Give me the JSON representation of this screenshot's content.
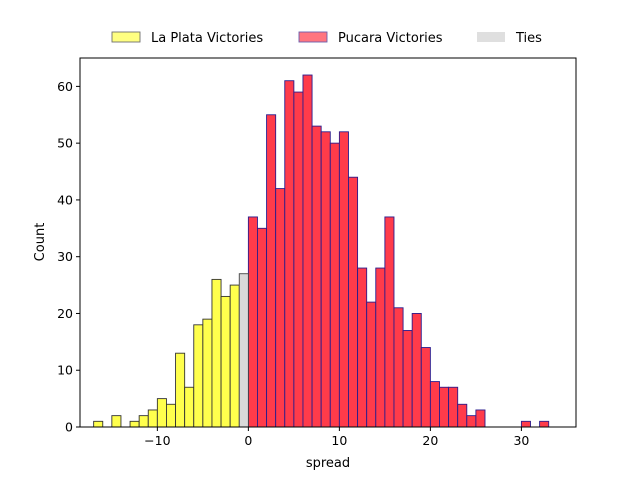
{
  "chart_data": {
    "type": "bar",
    "title": "",
    "xlabel": "spread",
    "ylabel": "Count",
    "xlim": [
      -18.5,
      36
    ],
    "ylim": [
      0,
      65
    ],
    "xticks": [
      -10,
      0,
      10,
      20,
      30
    ],
    "yticks": [
      0,
      10,
      20,
      30,
      40,
      50,
      60
    ],
    "grid": false,
    "legend_placement": "top-center",
    "bin_width": 1,
    "series": [
      {
        "name": "La Plata Victories",
        "face_color": "#ffff4d",
        "edge_color": "#333333",
        "bins": [
          {
            "x": -16.5,
            "count": 1
          },
          {
            "x": -15.5,
            "count": 0
          },
          {
            "x": -14.5,
            "count": 2
          },
          {
            "x": -13.5,
            "count": 0
          },
          {
            "x": -12.5,
            "count": 1
          },
          {
            "x": -11.5,
            "count": 2
          },
          {
            "x": -10.5,
            "count": 3
          },
          {
            "x": -9.5,
            "count": 5
          },
          {
            "x": -8.5,
            "count": 4
          },
          {
            "x": -7.5,
            "count": 13
          },
          {
            "x": -6.5,
            "count": 7
          },
          {
            "x": -5.5,
            "count": 18
          },
          {
            "x": -4.5,
            "count": 19
          },
          {
            "x": -3.5,
            "count": 26
          },
          {
            "x": -2.5,
            "count": 23
          },
          {
            "x": -1.5,
            "count": 25
          }
        ]
      },
      {
        "name": "Pucara Victories",
        "face_color": "#ff3b4a",
        "edge_color": "#2b1c8c",
        "bins": [
          {
            "x": 0.5,
            "count": 37
          },
          {
            "x": 1.5,
            "count": 35
          },
          {
            "x": 2.5,
            "count": 55
          },
          {
            "x": 3.5,
            "count": 42
          },
          {
            "x": 4.5,
            "count": 61
          },
          {
            "x": 5.5,
            "count": 59
          },
          {
            "x": 6.5,
            "count": 62
          },
          {
            "x": 7.5,
            "count": 53
          },
          {
            "x": 8.5,
            "count": 52
          },
          {
            "x": 9.5,
            "count": 50
          },
          {
            "x": 10.5,
            "count": 52
          },
          {
            "x": 11.5,
            "count": 44
          },
          {
            "x": 12.5,
            "count": 28
          },
          {
            "x": 13.5,
            "count": 22
          },
          {
            "x": 14.5,
            "count": 28
          },
          {
            "x": 15.5,
            "count": 37
          },
          {
            "x": 16.5,
            "count": 21
          },
          {
            "x": 17.5,
            "count": 17
          },
          {
            "x": 18.5,
            "count": 20
          },
          {
            "x": 19.5,
            "count": 14
          },
          {
            "x": 20.5,
            "count": 8
          },
          {
            "x": 21.5,
            "count": 7
          },
          {
            "x": 22.5,
            "count": 7
          },
          {
            "x": 23.5,
            "count": 4
          },
          {
            "x": 24.5,
            "count": 2
          },
          {
            "x": 25.5,
            "count": 3
          },
          {
            "x": 30.5,
            "count": 1
          },
          {
            "x": 32.5,
            "count": 1
          }
        ]
      },
      {
        "name": "Ties",
        "face_color": "#d9d9d9",
        "edge_color": "#444444",
        "bins": [
          {
            "x": -0.5,
            "count": 27
          }
        ]
      }
    ]
  }
}
